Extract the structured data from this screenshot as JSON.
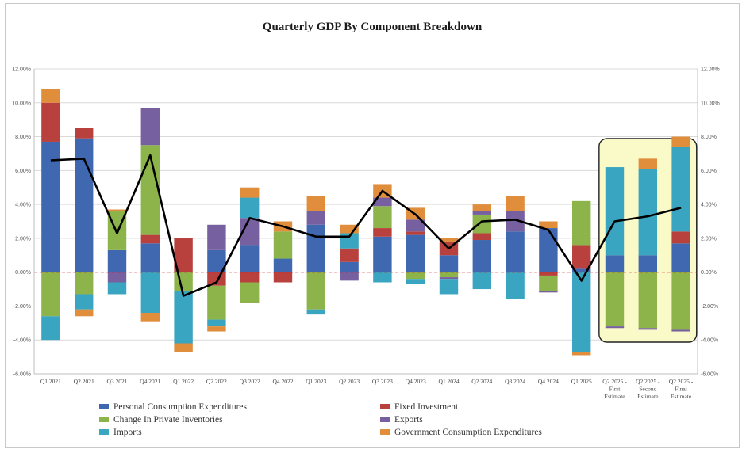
{
  "chart_data": {
    "type": "bar",
    "subtype": "stacked bar with line overlay",
    "title": "Quarterly GDP By Component Breakdown",
    "xlabel": "",
    "ylabel": "",
    "ylim": [
      -6,
      12
    ],
    "y_ticks": [
      "-6.00%",
      "-4.00%",
      "-2.00%",
      "0.00%",
      "2.00%",
      "4.00%",
      "6.00%",
      "8.00%",
      "10.00%",
      "12.00%"
    ],
    "y2_ticks": [
      "-6.00%",
      "-4.00%",
      "-2.00%",
      "0.00%",
      "2.00%",
      "4.00%",
      "6.00%",
      "8.00%",
      "10.00%",
      "12.00%"
    ],
    "grid": true,
    "zero_line": "dashed red",
    "categories": [
      [
        "Q1 2021"
      ],
      [
        "Q2 2021"
      ],
      [
        "Q3 2021"
      ],
      [
        "Q4 2021"
      ],
      [
        "Q1 2022"
      ],
      [
        "Q2 2022"
      ],
      [
        "Q3 2022"
      ],
      [
        "Q4 2022"
      ],
      [
        "Q1 2023"
      ],
      [
        "Q2 2023"
      ],
      [
        "Q3 2023"
      ],
      [
        "Q4 2023"
      ],
      [
        "Q1 2024"
      ],
      [
        "Q2 2024"
      ],
      [
        "Q3 2024"
      ],
      [
        "Q4 2024"
      ],
      [
        "Q1 2025"
      ],
      [
        "Q2 2025 -",
        "First",
        "Estimate"
      ],
      [
        "Q2 2025 -",
        "Second",
        "Estimate"
      ],
      [
        "Q2 2025 -",
        "Final",
        "Estimate"
      ]
    ],
    "series": [
      {
        "name": "Personal Consumption Expenditures",
        "color": "#3f68b0",
        "values": [
          7.7,
          7.9,
          1.3,
          1.7,
          0.0,
          1.3,
          1.6,
          0.8,
          2.8,
          0.6,
          2.1,
          2.2,
          1.0,
          1.9,
          2.4,
          2.6,
          0.2,
          1.0,
          1.0,
          1.7
        ]
      },
      {
        "name": "Fixed Investment",
        "color": "#b8413e",
        "values": [
          2.3,
          0.6,
          0.0,
          0.5,
          2.0,
          -0.8,
          -0.6,
          -0.6,
          0.0,
          0.8,
          0.5,
          0.2,
          0.8,
          0.4,
          0.0,
          -0.2,
          1.4,
          0.0,
          0.0,
          0.7
        ]
      },
      {
        "name": "Change In Private Inventories",
        "color": "#8db44a",
        "values": [
          -2.6,
          -1.3,
          2.3,
          5.3,
          -1.1,
          -2.0,
          -1.2,
          1.6,
          -2.2,
          0.0,
          1.3,
          -0.4,
          -0.3,
          1.1,
          0.0,
          -0.9,
          2.6,
          -3.2,
          -3.3,
          -3.4
        ]
      },
      {
        "name": "Exports",
        "color": "#7660a0",
        "values": [
          0.0,
          0.0,
          -0.6,
          2.2,
          0.0,
          1.5,
          1.6,
          0.0,
          0.8,
          -0.5,
          0.5,
          0.7,
          -0.1,
          0.2,
          1.2,
          -0.1,
          0.0,
          -0.1,
          -0.1,
          -0.1
        ]
      },
      {
        "name": "Imports",
        "color": "#3aa5c0",
        "values": [
          -1.4,
          -0.9,
          -0.7,
          -2.4,
          -3.1,
          -0.4,
          1.2,
          0.0,
          -0.3,
          0.9,
          -0.6,
          -0.3,
          -0.9,
          -1.0,
          -1.6,
          0.0,
          -4.7,
          5.2,
          5.1,
          5.0
        ]
      },
      {
        "name": "Government Consumption Expenditures",
        "color": "#e08d3c",
        "values": [
          0.8,
          -0.4,
          0.1,
          -0.5,
          -0.5,
          -0.3,
          0.6,
          0.6,
          0.9,
          0.5,
          0.8,
          0.7,
          0.2,
          0.4,
          0.9,
          0.4,
          -0.2,
          0.0,
          0.6,
          0.6
        ]
      }
    ],
    "line": {
      "name": "Real GDP",
      "color": "#000000",
      "values": [
        6.6,
        6.7,
        2.3,
        6.9,
        -1.4,
        -0.6,
        3.2,
        2.7,
        2.1,
        2.1,
        4.8,
        3.4,
        1.4,
        3.0,
        3.1,
        2.5,
        -0.5,
        3.0,
        3.3,
        3.8
      ]
    },
    "highlight": {
      "from_index": 17,
      "to_index": 19,
      "color": "#fafac8"
    },
    "legend_position": "bottom",
    "legend": [
      "Personal Consumption Expenditures",
      "Fixed Investment",
      "Change In Private Inventories",
      "Exports",
      "Imports",
      "Government Consumption Expenditures"
    ]
  }
}
